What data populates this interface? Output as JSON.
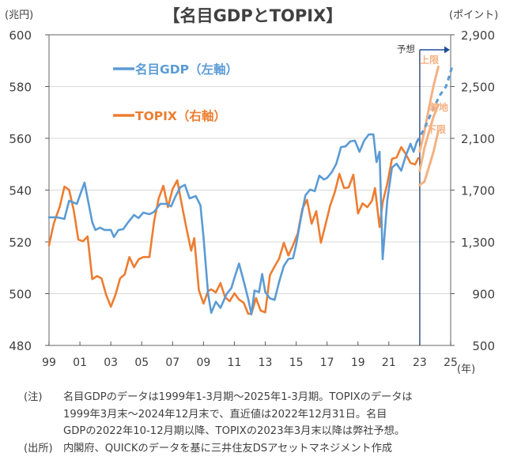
{
  "chart_data": {
    "type": "line",
    "title": "【名目GDPとTOPIX】",
    "left_axis": {
      "unit_label": "(兆円)",
      "range": [
        480,
        600
      ],
      "ticks": [
        480,
        500,
        520,
        540,
        560,
        580,
        600
      ],
      "tick_labels": [
        "480",
        "500",
        "520",
        "540",
        "560",
        "580",
        "600"
      ]
    },
    "right_axis": {
      "unit_label": "(ポイント)",
      "range": [
        500,
        2900
      ],
      "ticks": [
        500,
        900,
        1300,
        1700,
        2100,
        2500,
        2900
      ],
      "tick_labels": [
        "500",
        "900",
        "1,300",
        "1,700",
        "2,100",
        "2,500",
        "2,900"
      ]
    },
    "x_axis": {
      "unit_label": "(年)",
      "range": [
        1999,
        2025
      ],
      "ticks": [
        1999,
        2001,
        2003,
        2005,
        2007,
        2009,
        2011,
        2013,
        2015,
        2017,
        2019,
        2021,
        2023,
        2025
      ],
      "tick_labels": [
        "99",
        "01",
        "03",
        "05",
        "07",
        "09",
        "11",
        "13",
        "15",
        "17",
        "19",
        "21",
        "23",
        "25"
      ]
    },
    "grid": true,
    "legend": [
      {
        "name": "名目GDP（左軸）",
        "color": "#5b9bd5"
      },
      {
        "name": "TOPIX（右軸）",
        "color": "#ed7d31"
      }
    ],
    "forecast_start": 2023,
    "forecast_label": "予想",
    "series": [
      {
        "name": "名目GDP",
        "axis": "left",
        "color": "#5b9bd5",
        "x": [
          1999.0,
          1999.5,
          2000.0,
          2000.3,
          2000.8,
          2001.0,
          2001.3,
          2001.8,
          2002.0,
          2002.3,
          2002.6,
          2003.0,
          2003.2,
          2003.5,
          2003.8,
          2004.1,
          2004.5,
          2004.8,
          2005.1,
          2005.5,
          2005.8,
          2006.2,
          2006.6,
          2006.9,
          2007.2,
          2007.5,
          2007.8,
          2008.1,
          2008.5,
          2008.8,
          2009.0,
          2009.3,
          2009.5,
          2009.8,
          2010.1,
          2010.5,
          2010.8,
          2011.0,
          2011.3,
          2011.6,
          2011.9,
          2012.1,
          2012.3,
          2012.6,
          2012.8,
          2013.0,
          2013.3,
          2013.6,
          2013.9,
          2014.2,
          2014.5,
          2014.8,
          2015.0,
          2015.3,
          2015.6,
          2015.9,
          2016.2,
          2016.5,
          2016.8,
          2017.0,
          2017.3,
          2017.6,
          2017.9,
          2018.2,
          2018.5,
          2018.8,
          2019.1,
          2019.4,
          2019.7,
          2020.0,
          2020.2,
          2020.4,
          2020.6,
          2020.9,
          2021.2,
          2021.5,
          2021.8,
          2022.1,
          2022.4,
          2022.6,
          2022.8
        ],
        "values": [
          529.5,
          529.5,
          528.9,
          535.9,
          534.7,
          538.0,
          542.9,
          527.6,
          524.6,
          525.5,
          524.6,
          524.6,
          521.9,
          524.6,
          524.9,
          527.4,
          530.4,
          529.2,
          531.3,
          530.7,
          531.6,
          534.7,
          534.7,
          533.7,
          537.7,
          541.1,
          542.0,
          536.8,
          537.7,
          534.1,
          521.9,
          499.9,
          492.6,
          496.9,
          494.5,
          499.9,
          502.1,
          506.1,
          511.6,
          504.9,
          497.9,
          492.0,
          501.2,
          500.6,
          507.6,
          500.6,
          498.2,
          497.6,
          504.6,
          510.7,
          513.4,
          513.7,
          518.9,
          529.0,
          538.0,
          540.2,
          539.6,
          545.6,
          544.1,
          544.7,
          546.9,
          550.2,
          556.6,
          556.9,
          558.8,
          559.1,
          554.8,
          559.1,
          561.5,
          561.5,
          550.8,
          554.8,
          513.3,
          536.2,
          548.7,
          550.2,
          547.5,
          553.3,
          557.9,
          554.8,
          558.5
        ]
      },
      {
        "name": "名目GDP（予想）",
        "axis": "left",
        "color": "#5b9bd5",
        "dashed": true,
        "x": [
          2022.8,
          2023.3,
          2023.8,
          2024.3,
          2024.7,
          2025.1
        ],
        "values": [
          558.5,
          563.8,
          570.5,
          576.6,
          580.0,
          587.8
        ]
      },
      {
        "name": "TOPIX",
        "axis": "right",
        "color": "#ed7d31",
        "x": [
          1999.0,
          1999.3,
          1999.7,
          2000.0,
          2000.3,
          2000.6,
          2000.9,
          2001.2,
          2001.5,
          2001.8,
          2002.1,
          2002.4,
          2002.7,
          2003.0,
          2003.3,
          2003.6,
          2003.9,
          2004.2,
          2004.5,
          2004.8,
          2005.1,
          2005.5,
          2005.8,
          2006.1,
          2006.4,
          2006.7,
          2007.0,
          2007.3,
          2007.6,
          2007.9,
          2008.2,
          2008.4,
          2008.7,
          2009.0,
          2009.3,
          2009.5,
          2009.8,
          2010.1,
          2010.4,
          2010.7,
          2011.0,
          2011.3,
          2011.6,
          2011.9,
          2012.1,
          2012.4,
          2012.7,
          2013.0,
          2013.3,
          2013.6,
          2013.9,
          2014.2,
          2014.5,
          2014.8,
          2015.1,
          2015.4,
          2015.7,
          2016.0,
          2016.3,
          2016.6,
          2016.9,
          2017.2,
          2017.5,
          2017.8,
          2018.1,
          2018.4,
          2018.7,
          2019.0,
          2019.3,
          2019.6,
          2019.9,
          2020.1,
          2020.4,
          2020.6,
          2020.9,
          2021.2,
          2021.5,
          2021.8,
          2022.1,
          2022.4,
          2022.7,
          2022.9
        ],
        "values": [
          1274,
          1440,
          1574,
          1727,
          1702,
          1543,
          1317,
          1305,
          1342,
          1012,
          1036,
          1018,
          890,
          799,
          890,
          1018,
          1049,
          1183,
          1104,
          1165,
          1183,
          1183,
          1458,
          1635,
          1733,
          1568,
          1708,
          1776,
          1586,
          1403,
          1232,
          1329,
          927,
          823,
          921,
          933,
          909,
          982,
          872,
          842,
          903,
          854,
          830,
          744,
          744,
          866,
          769,
          756,
          1043,
          1110,
          1171,
          1293,
          1195,
          1275,
          1366,
          1556,
          1624,
          1440,
          1537,
          1293,
          1433,
          1580,
          1684,
          1825,
          1715,
          1721,
          1819,
          1519,
          1598,
          1568,
          1617,
          1715,
          1415,
          1604,
          1751,
          1941,
          1953,
          2032,
          1977,
          1910,
          1898,
          1947
        ]
      },
      {
        "name": "TOPIX予想（上限）",
        "axis": "right",
        "color": "#f4b183",
        "x": [
          2023.0,
          2023.3,
          2023.6,
          2023.9,
          2024.2
        ],
        "values": [
          2000,
          2152,
          2336,
          2510,
          2653
        ]
      },
      {
        "name": "TOPIX予想（着地）",
        "axis": "right",
        "color": "#f4b183",
        "x": [
          2023.0,
          2023.3,
          2023.6,
          2023.9,
          2024.2
        ],
        "values": [
          1850,
          2024,
          2150,
          2270,
          2360
        ]
      },
      {
        "name": "TOPIX予想（下限）",
        "axis": "right",
        "color": "#f4b183",
        "x": [
          2023.0,
          2023.3,
          2023.6,
          2023.9,
          2024.2
        ],
        "values": [
          1740,
          1765,
          1880,
          2000,
          2158
        ]
      }
    ],
    "annotations": [
      {
        "text": "上限",
        "color": "#f4b183"
      },
      {
        "text": "着地",
        "color": "#f4b183"
      },
      {
        "text": "下限",
        "color": "#f4b183"
      }
    ]
  },
  "notes": {
    "note_label": "(注)",
    "note_lines": [
      "名目GDPのデータは1999年1-3月期～2025年1-3月期。TOPIXのデータは",
      "1999年3月末～2024年12月末で、直近値は2022年12月31日。名目",
      "GDPの2022年10-12月期以降、TOPIXの2023年3月末以降は弊社予想。"
    ],
    "source_label": "(出所)",
    "source_text": "内閣府、QUICKのデータを基に三井住友DSアセットマネジメント作成"
  }
}
